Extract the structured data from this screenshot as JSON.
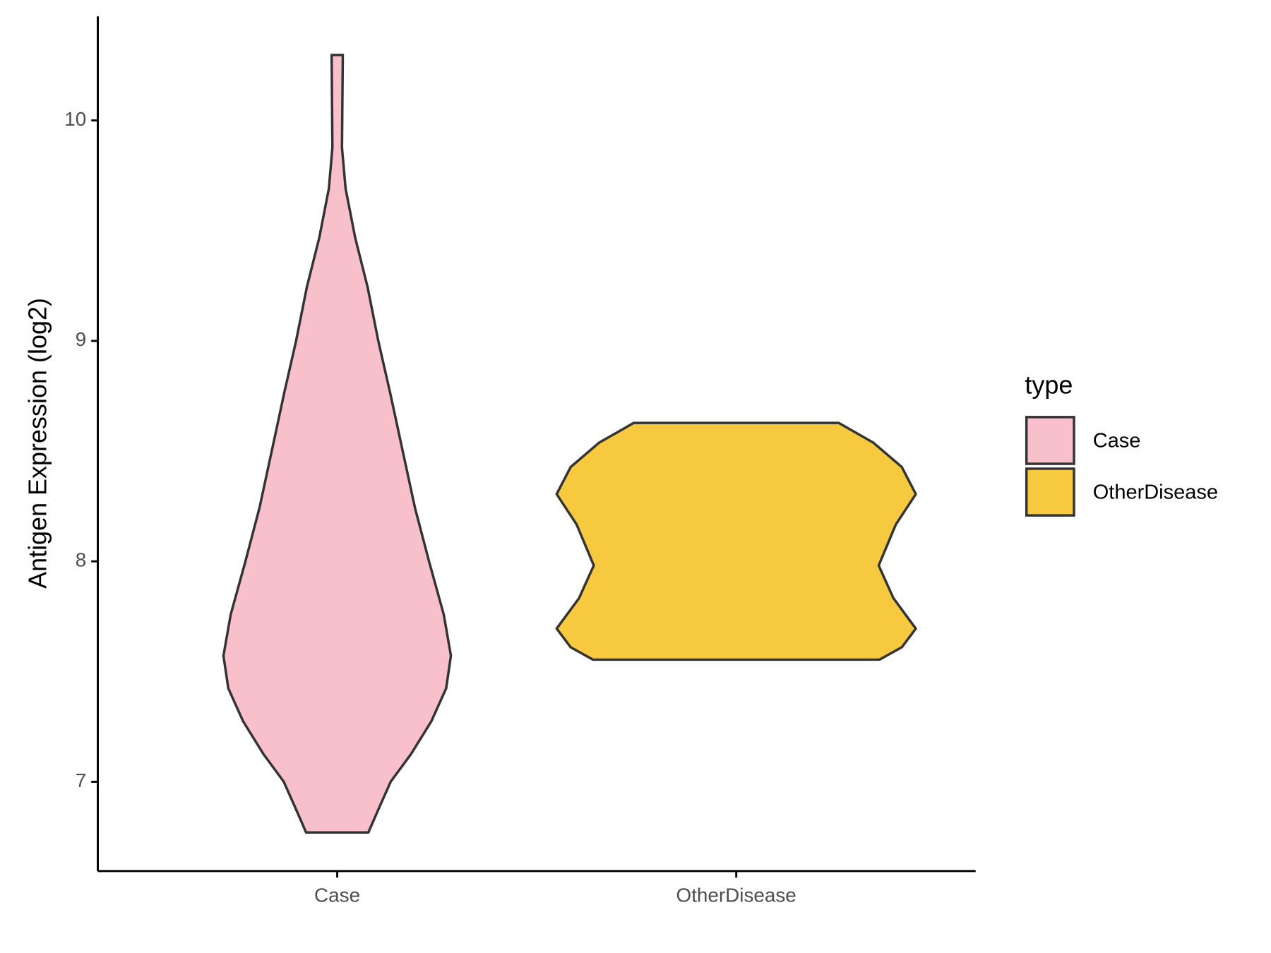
{
  "chart_data": {
    "type": "violin",
    "y_label": "Antigen Expression (log2)",
    "categories": [
      "Case",
      "OtherDisease"
    ],
    "ylim": [
      6.595,
      10.472
    ],
    "yticks": [
      7,
      8,
      9,
      10
    ],
    "legend_title": "type",
    "legend_position": "right",
    "series": [
      {
        "name": "Case",
        "color": "#f7c0cb",
        "y": [
          10.297,
          9.877,
          9.691,
          9.468,
          9.245,
          9.0,
          8.762,
          8.502,
          8.242,
          8.0,
          7.758,
          7.572,
          7.424,
          7.275,
          7.126,
          7.0,
          6.866,
          6.77
        ],
        "half_width": [
          0.014,
          0.012,
          0.021,
          0.045,
          0.076,
          0.103,
          0.133,
          0.164,
          0.195,
          0.23,
          0.267,
          0.285,
          0.273,
          0.236,
          0.185,
          0.134,
          0.101,
          0.078
        ]
      },
      {
        "name": "OtherDisease",
        "color": "#f6c93f",
        "y": [
          8.628,
          8.539,
          8.428,
          8.305,
          8.167,
          7.981,
          7.833,
          7.695,
          7.61,
          7.554
        ],
        "half_width": [
          0.257,
          0.343,
          0.415,
          0.45,
          0.4,
          0.357,
          0.394,
          0.45,
          0.415,
          0.359
        ]
      }
    ]
  }
}
